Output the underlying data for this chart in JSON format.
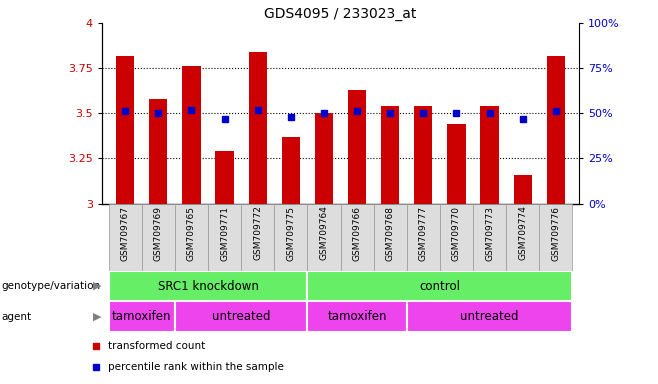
{
  "title": "GDS4095 / 233023_at",
  "samples": [
    "GSM709767",
    "GSM709769",
    "GSM709765",
    "GSM709771",
    "GSM709772",
    "GSM709775",
    "GSM709764",
    "GSM709766",
    "GSM709768",
    "GSM709777",
    "GSM709770",
    "GSM709773",
    "GSM709774",
    "GSM709776"
  ],
  "bar_values": [
    3.82,
    3.58,
    3.76,
    3.29,
    3.84,
    3.37,
    3.5,
    3.63,
    3.54,
    3.54,
    3.44,
    3.54,
    3.16,
    3.82
  ],
  "dot_values": [
    3.51,
    3.5,
    3.52,
    3.47,
    3.52,
    3.48,
    3.5,
    3.51,
    3.5,
    3.5,
    3.5,
    3.5,
    3.47,
    3.51
  ],
  "ylim_left": [
    3.0,
    4.0
  ],
  "ylim_right": [
    0,
    100
  ],
  "yticks_left": [
    3.0,
    3.25,
    3.5,
    3.75,
    4.0
  ],
  "yticks_right": [
    0,
    25,
    50,
    75,
    100
  ],
  "bar_color": "#CC0000",
  "dot_color": "#0000CC",
  "bar_base": 3.0,
  "genotype_groups": [
    {
      "label": "SRC1 knockdown",
      "start": 0,
      "end": 6
    },
    {
      "label": "control",
      "start": 6,
      "end": 14
    }
  ],
  "agent_groups": [
    {
      "label": "tamoxifen",
      "start": 0,
      "end": 2
    },
    {
      "label": "untreated",
      "start": 2,
      "end": 6
    },
    {
      "label": "tamoxifen",
      "start": 6,
      "end": 9
    },
    {
      "label": "untreated",
      "start": 9,
      "end": 14
    }
  ],
  "genotype_color": "#66EE66",
  "agent_color": "#EE44EE",
  "legend_items": [
    {
      "label": "transformed count",
      "color": "#CC0000"
    },
    {
      "label": "percentile rank within the sample",
      "color": "#0000CC"
    }
  ]
}
